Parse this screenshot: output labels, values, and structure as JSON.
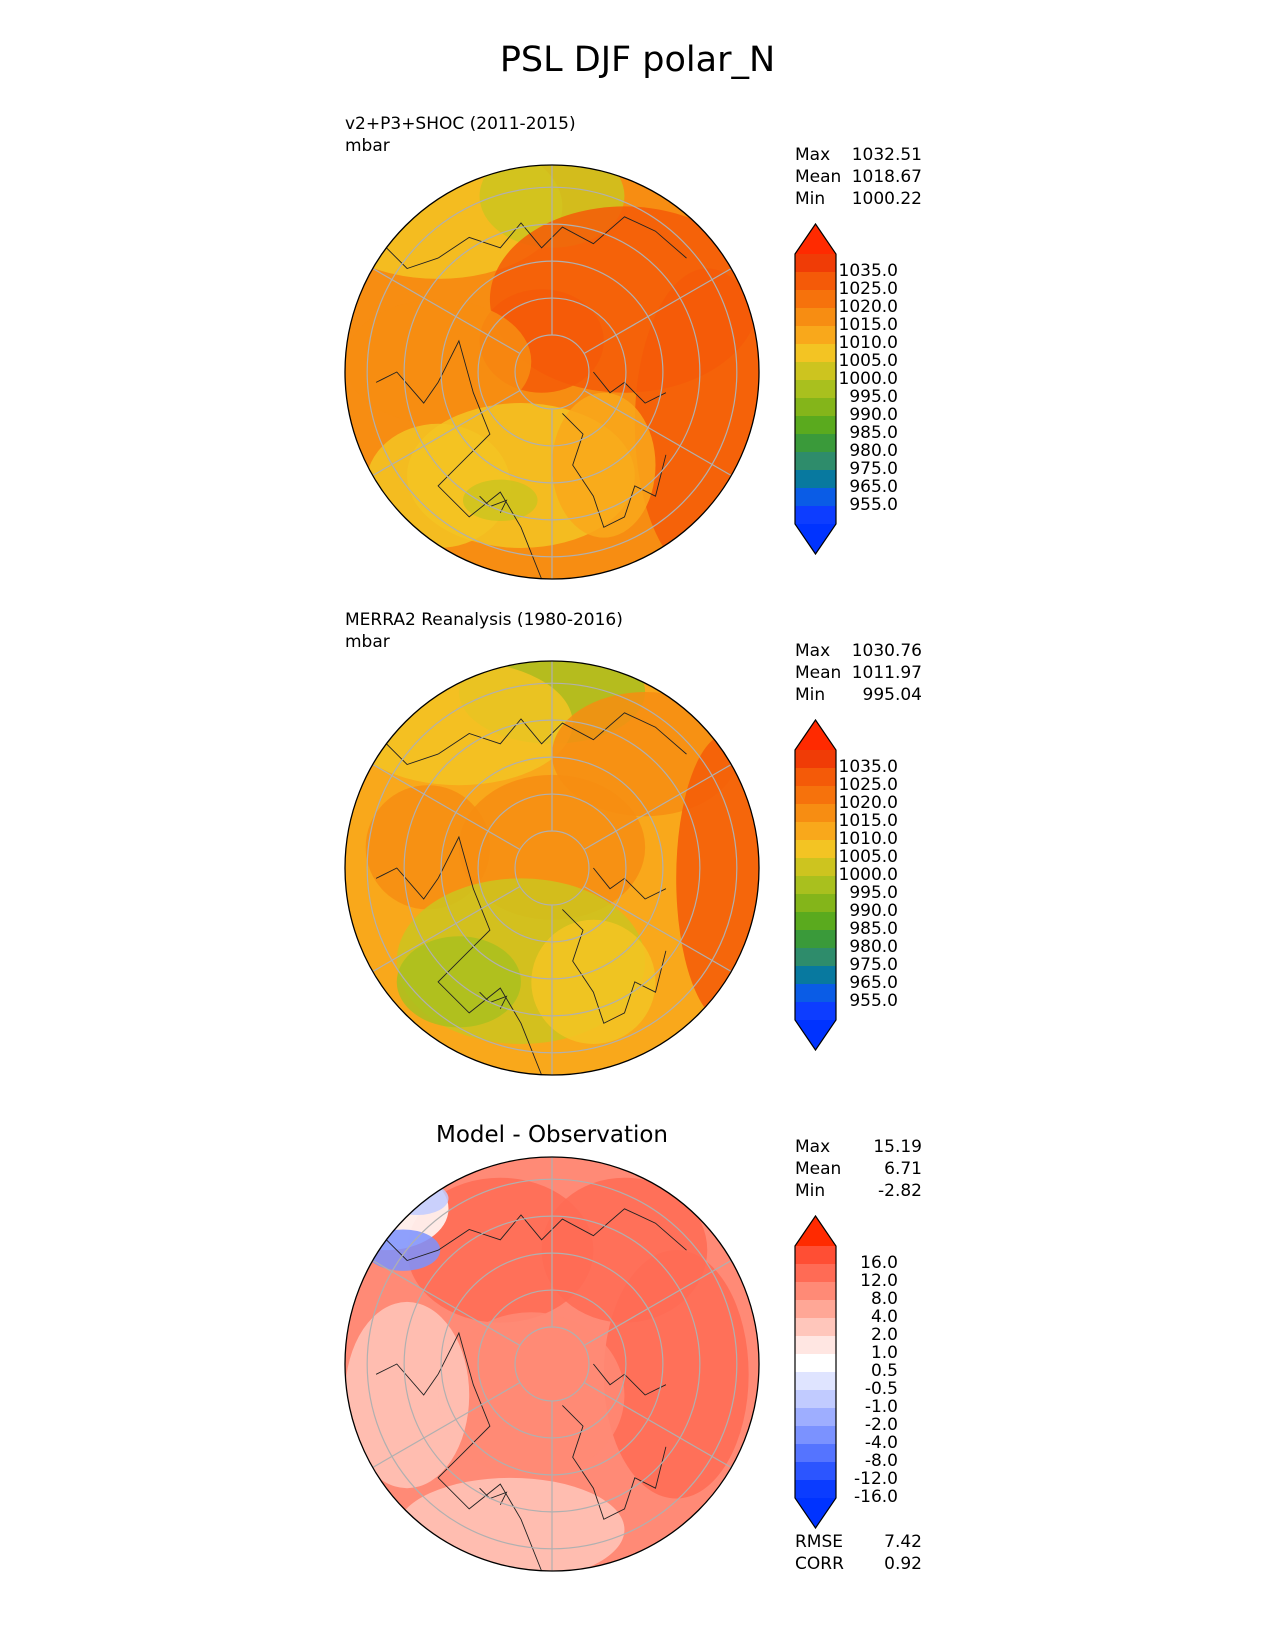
{
  "figure": {
    "title": "PSL DJF polar_N"
  },
  "colors": {
    "abs_scale": [
      "#0d3dff",
      "#0a5ce6",
      "#08799f",
      "#2e8c6b",
      "#3a9a3a",
      "#5aaa1e",
      "#84b51a",
      "#a9c01e",
      "#cdc41f",
      "#f3c423",
      "#f9a81b",
      "#f78d12",
      "#f6720c",
      "#f45a08",
      "#f03c06"
    ],
    "abs_over": "#ff2a00",
    "abs_under": "#0033ff",
    "diff_scale": [
      "#0b3cff",
      "#2c55ff",
      "#5574ff",
      "#7b92ff",
      "#9eaeff",
      "#c1cbff",
      "#dfe4ff",
      "#ffffff",
      "#ffe6e2",
      "#ffc6bb",
      "#ffa796",
      "#ff8a76",
      "#ff6b55",
      "#ff4e34"
    ],
    "diff_over": "#ff2a00",
    "diff_under": "#0033ff",
    "grid": "#b0b0b0",
    "coast": "#222222"
  },
  "panels": [
    {
      "id": "test",
      "name": "v2+P3+SHOC (2011-2015)",
      "units": "mbar",
      "stats": [
        {
          "label": "Max",
          "value": "1032.51"
        },
        {
          "label": "Mean",
          "value": "1018.67"
        },
        {
          "label": "Min",
          "value": "1000.22"
        }
      ],
      "colorbar_ticks": [
        "1035.0",
        "1025.0",
        "1020.0",
        "1015.0",
        "1010.0",
        "1005.0",
        "1000.0",
        "995.0",
        "990.0",
        "985.0",
        "980.0",
        "975.0",
        "965.0",
        "955.0"
      ]
    },
    {
      "id": "ref",
      "name": "MERRA2 Reanalysis (1980-2016)",
      "units": "mbar",
      "stats": [
        {
          "label": "Max",
          "value": "1030.76"
        },
        {
          "label": "Mean",
          "value": "1011.97"
        },
        {
          "label": "Min",
          "value": "995.04"
        }
      ],
      "colorbar_ticks": [
        "1035.0",
        "1025.0",
        "1020.0",
        "1015.0",
        "1010.0",
        "1005.0",
        "1000.0",
        "995.0",
        "990.0",
        "985.0",
        "980.0",
        "975.0",
        "965.0",
        "955.0"
      ]
    },
    {
      "id": "diff",
      "title": "Model - Observation",
      "stats": [
        {
          "label": "Max",
          "value": "15.19"
        },
        {
          "label": "Mean",
          "value": "6.71"
        },
        {
          "label": "Min",
          "value": "-2.82"
        }
      ],
      "colorbar_ticks": [
        "16.0",
        "12.0",
        "8.0",
        "4.0",
        "2.0",
        "1.0",
        "0.5",
        "-0.5",
        "-1.0",
        "-2.0",
        "-4.0",
        "-8.0",
        "-12.0",
        "-16.0"
      ],
      "extra_stats": [
        {
          "label": "RMSE",
          "value": "7.42"
        },
        {
          "label": "CORR",
          "value": "0.92"
        }
      ]
    }
  ],
  "chart_data": [
    {
      "type": "heatmap",
      "title": "v2+P3+SHOC (2011-2015)",
      "units": "mbar",
      "projection": "north polar stereographic",
      "colorbar_levels": [
        955,
        965,
        975,
        980,
        985,
        990,
        995,
        1000,
        1005,
        1010,
        1015,
        1020,
        1025,
        1035
      ],
      "max": 1032.51,
      "mean": 1018.67,
      "min": 1000.22
    },
    {
      "type": "heatmap",
      "title": "MERRA2 Reanalysis (1980-2016)",
      "units": "mbar",
      "projection": "north polar stereographic",
      "colorbar_levels": [
        955,
        965,
        975,
        980,
        985,
        990,
        995,
        1000,
        1005,
        1010,
        1015,
        1020,
        1025,
        1035
      ],
      "max": 1030.76,
      "mean": 1011.97,
      "min": 995.04
    },
    {
      "type": "heatmap",
      "title": "Model - Observation",
      "projection": "north polar stereographic",
      "colorbar_levels": [
        -16,
        -12,
        -8,
        -4,
        -2,
        -1,
        -0.5,
        0.5,
        1,
        2,
        4,
        8,
        12,
        16
      ],
      "max": 15.19,
      "mean": 6.71,
      "min": -2.82,
      "rmse": 7.42,
      "corr": 0.92
    }
  ]
}
